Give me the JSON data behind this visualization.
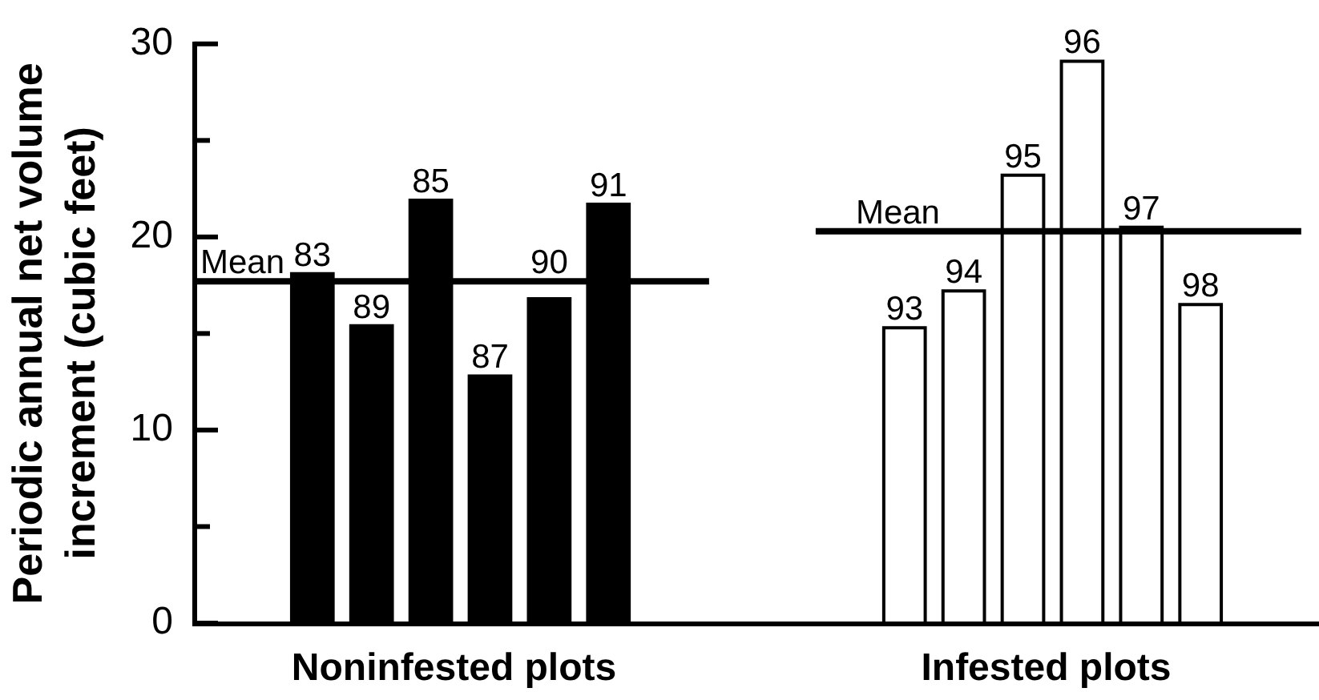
{
  "chart_data": {
    "type": "bar",
    "ylabel": "Periodic annual net volume increment (cubic feet)",
    "categories": [
      null,
      null,
      "83",
      "89",
      "85",
      "87",
      "90",
      "91",
      null,
      null,
      null,
      null,
      "93",
      "94",
      "95",
      "96",
      "97",
      "98",
      null,
      null
    ],
    "series": [
      {
        "name": "Noninfested plots",
        "color": "#000000",
        "values": [
          null,
          null,
          18.1,
          15.4,
          21.9,
          12.8,
          16.8,
          21.7,
          null,
          null,
          null,
          null,
          null,
          null,
          null,
          null,
          null,
          null,
          null,
          null
        ]
      },
      {
        "name": "Infested plots",
        "color": "#ffffff",
        "values": [
          null,
          null,
          null,
          null,
          null,
          null,
          null,
          null,
          null,
          null,
          null,
          null,
          15.3,
          17.2,
          23.2,
          29.1,
          20.5,
          16.5,
          null,
          null
        ]
      }
    ],
    "ylim": [
      0,
      30
    ],
    "yticks": [
      0,
      {
        "value": 5,
        "label": null
      },
      10,
      {
        "value": 15,
        "label": null
      },
      20,
      {
        "value": 25,
        "label": null
      },
      30
    ],
    "ref_lines": [
      {
        "axis": "y",
        "value": 17.7,
        "label": "Mean"
      },
      {
        "axis": "y",
        "value": 20.3,
        "label": "Mean"
      }
    ]
  }
}
